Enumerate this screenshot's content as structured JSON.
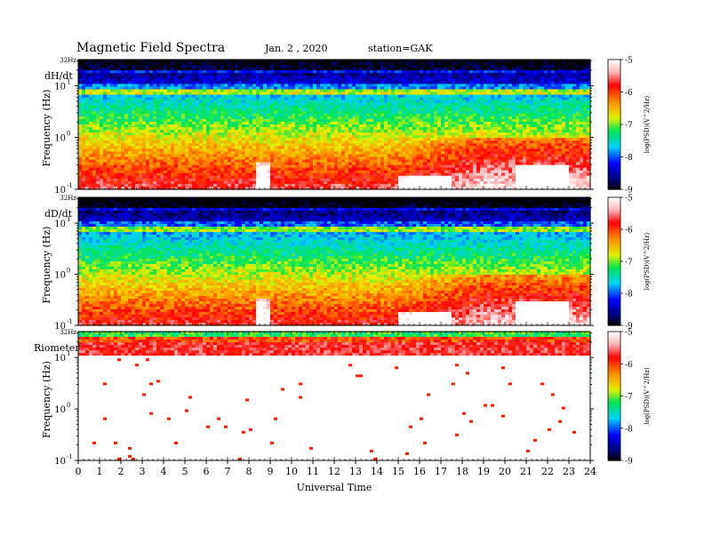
{
  "header": {
    "title": "Magnetic Field Spectra",
    "date": "Jan. 2 , 2020",
    "station": "station=GAK"
  },
  "chart_data": {
    "type": "heatmap",
    "xlabel": "Universal Time",
    "x_ticks": [
      "0",
      "1",
      "2",
      "3",
      "4",
      "5",
      "6",
      "7",
      "8",
      "9",
      "10",
      "11",
      "12",
      "13",
      "14",
      "15",
      "16",
      "17",
      "18",
      "19",
      "20",
      "21",
      "22",
      "23",
      "24"
    ],
    "xlim": [
      0,
      24
    ],
    "ylabel": "Frequency (Hz)",
    "y_scale": "log",
    "ylim": [
      0.1,
      32
    ],
    "top_label": "32Hz",
    "y_tick_base": "10",
    "y_tick_exponents": [
      "1",
      "0",
      "-1"
    ],
    "colorbar": {
      "label": "log(PSD)(V^2/Hz)",
      "ticks": [
        "-5",
        "-6",
        "-7",
        "-8",
        "-9"
      ],
      "range": [
        -9,
        -5
      ],
      "colormap": "white-red-yellow-green-cyan-blue-navy-black"
    },
    "panels": [
      {
        "name": "dH/dt"
      },
      {
        "name": "dD/dt"
      },
      {
        "name": "Riometer"
      }
    ]
  }
}
